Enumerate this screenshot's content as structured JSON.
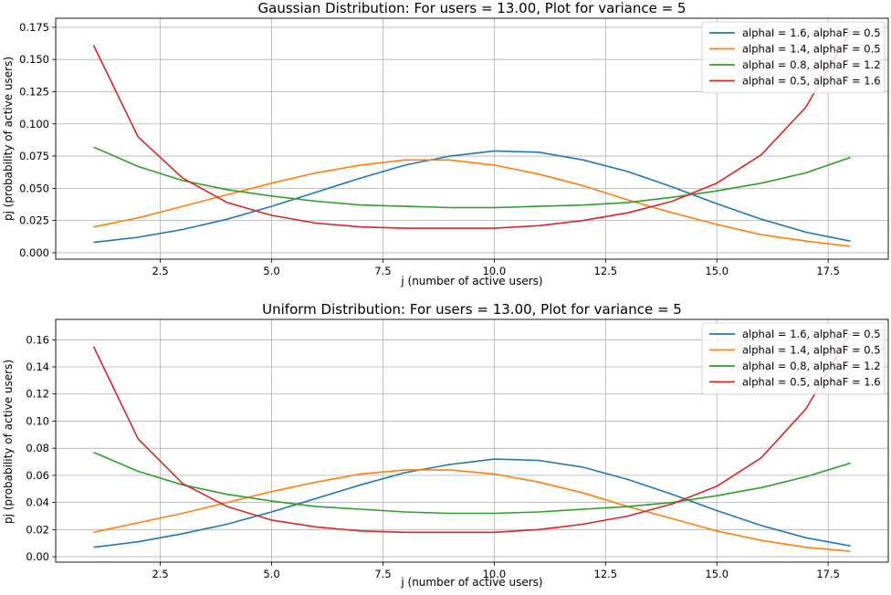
{
  "chart_data": [
    {
      "type": "line",
      "title": "Gaussian Distribution: For users = 13.00, Plot for variance = 5",
      "xlabel": "j (number of active users)",
      "ylabel": "pj (probability of active users)",
      "xlim": [
        0.15,
        18.85
      ],
      "ylim": [
        -0.005,
        0.182
      ],
      "xticks": [
        "2.5",
        "5.0",
        "7.5",
        "10.0",
        "12.5",
        "15.0",
        "17.5"
      ],
      "yticks": [
        "0.000",
        "0.025",
        "0.050",
        "0.075",
        "0.100",
        "0.125",
        "0.150",
        "0.175"
      ],
      "grid": true,
      "legend_position": "top-right",
      "x": [
        1,
        2,
        3,
        4,
        5,
        6,
        7,
        8,
        9,
        10,
        11,
        12,
        13,
        14,
        15,
        16,
        17,
        18
      ],
      "series": [
        {
          "name": "alphaI = 1.6, alphaF = 0.5",
          "color": "#1f77b4",
          "values": [
            0.008,
            0.012,
            0.018,
            0.026,
            0.036,
            0.047,
            0.058,
            0.068,
            0.075,
            0.079,
            0.078,
            0.072,
            0.063,
            0.051,
            0.038,
            0.026,
            0.016,
            0.009
          ]
        },
        {
          "name": "alphaI = 1.4, alphaF = 0.5",
          "color": "#ff7f0e",
          "values": [
            0.02,
            0.027,
            0.036,
            0.045,
            0.054,
            0.062,
            0.068,
            0.072,
            0.072,
            0.068,
            0.061,
            0.052,
            0.041,
            0.031,
            0.022,
            0.014,
            0.009,
            0.005
          ]
        },
        {
          "name": "alphaI = 0.8, alphaF = 1.2",
          "color": "#2ca02c",
          "values": [
            0.082,
            0.067,
            0.056,
            0.049,
            0.044,
            0.04,
            0.037,
            0.036,
            0.035,
            0.035,
            0.036,
            0.037,
            0.039,
            0.043,
            0.048,
            0.054,
            0.062,
            0.074
          ]
        },
        {
          "name": "alphaI = 0.5, alphaF = 1.6",
          "color": "#d62728",
          "values": [
            0.161,
            0.09,
            0.058,
            0.039,
            0.029,
            0.023,
            0.02,
            0.019,
            0.019,
            0.019,
            0.021,
            0.025,
            0.031,
            0.04,
            0.054,
            0.076,
            0.113,
            0.172
          ]
        }
      ]
    },
    {
      "type": "line",
      "title": "Uniform Distribution: For users = 13.00, Plot for variance = 5",
      "xlabel": "j (number of active users)",
      "ylabel": "pj (probability of active users)",
      "xlim": [
        0.15,
        18.85
      ],
      "ylim": [
        -0.004,
        0.175
      ],
      "xticks": [
        "2.5",
        "5.0",
        "7.5",
        "10.0",
        "12.5",
        "15.0",
        "17.5"
      ],
      "yticks": [
        "0.00",
        "0.02",
        "0.04",
        "0.06",
        "0.08",
        "0.10",
        "0.12",
        "0.14",
        "0.16"
      ],
      "grid": true,
      "legend_position": "top-right",
      "x": [
        1,
        2,
        3,
        4,
        5,
        6,
        7,
        8,
        9,
        10,
        11,
        12,
        13,
        14,
        15,
        16,
        17,
        18
      ],
      "series": [
        {
          "name": "alphaI = 1.6, alphaF = 0.5",
          "color": "#1f77b4",
          "values": [
            0.007,
            0.011,
            0.017,
            0.024,
            0.033,
            0.043,
            0.053,
            0.062,
            0.068,
            0.072,
            0.071,
            0.066,
            0.057,
            0.046,
            0.034,
            0.023,
            0.014,
            0.008
          ]
        },
        {
          "name": "alphaI = 1.4, alphaF = 0.5",
          "color": "#ff7f0e",
          "values": [
            0.018,
            0.025,
            0.032,
            0.04,
            0.048,
            0.055,
            0.061,
            0.064,
            0.064,
            0.061,
            0.055,
            0.047,
            0.037,
            0.028,
            0.019,
            0.012,
            0.007,
            0.004
          ]
        },
        {
          "name": "alphaI = 0.8, alphaF = 1.2",
          "color": "#2ca02c",
          "values": [
            0.077,
            0.063,
            0.053,
            0.046,
            0.041,
            0.037,
            0.035,
            0.033,
            0.032,
            0.032,
            0.033,
            0.035,
            0.037,
            0.04,
            0.045,
            0.051,
            0.059,
            0.069
          ]
        },
        {
          "name": "alphaI = 0.5, alphaF = 1.6",
          "color": "#d62728",
          "values": [
            0.155,
            0.087,
            0.054,
            0.037,
            0.027,
            0.022,
            0.019,
            0.018,
            0.018,
            0.018,
            0.02,
            0.024,
            0.03,
            0.039,
            0.052,
            0.073,
            0.109,
            0.165
          ]
        }
      ]
    }
  ]
}
